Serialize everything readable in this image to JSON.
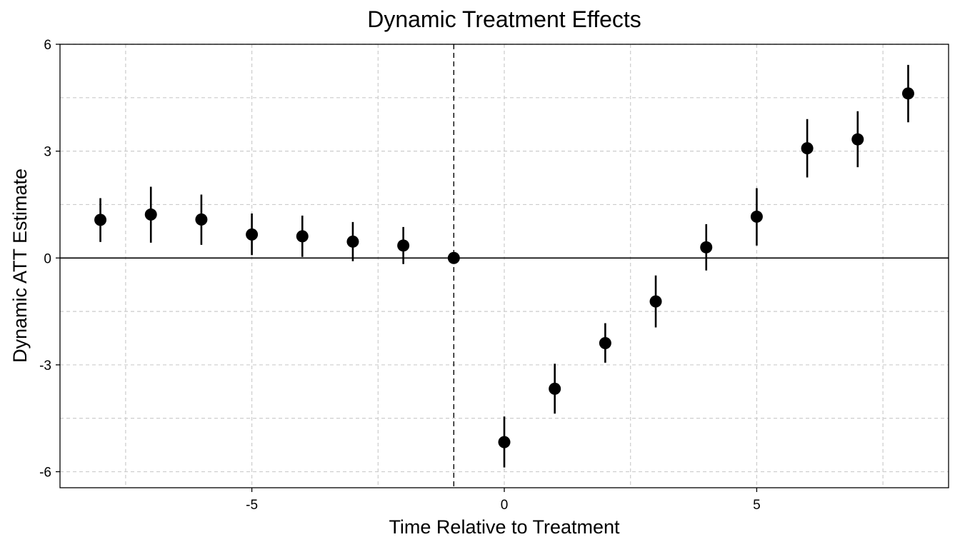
{
  "chart_data": {
    "type": "scatter",
    "title": "Dynamic Treatment Effects",
    "xlabel": "Time Relative to Treatment",
    "ylabel": "Dynamic ATT Estimate",
    "xlim": [
      -8.8,
      8.8
    ],
    "ylim": [
      -6.45,
      6
    ],
    "xticks": [
      -5,
      0,
      5
    ],
    "xtick_labels": [
      "-5",
      "0",
      "5"
    ],
    "xminor": [
      -7.5,
      -2.5,
      2.5,
      7.5
    ],
    "yticks": [
      -6,
      -3,
      0,
      3,
      6
    ],
    "ytick_labels": [
      "-6",
      "-3",
      "0",
      "3",
      "6"
    ],
    "yminor": [
      -4.5,
      -1.5,
      1.5,
      4.5
    ],
    "grid": true,
    "reference_lines": {
      "horizontal_at_y": 0,
      "vertical_dashed_at_x": -1
    },
    "points": [
      {
        "x": -8,
        "y": 1.07,
        "lower": 0.45,
        "upper": 1.68
      },
      {
        "x": -7,
        "y": 1.22,
        "lower": 0.43,
        "upper": 2.0
      },
      {
        "x": -6,
        "y": 1.08,
        "lower": 0.37,
        "upper": 1.78
      },
      {
        "x": -5,
        "y": 0.66,
        "lower": 0.08,
        "upper": 1.25
      },
      {
        "x": -4,
        "y": 0.61,
        "lower": 0.03,
        "upper": 1.19
      },
      {
        "x": -3,
        "y": 0.46,
        "lower": -0.09,
        "upper": 1.01
      },
      {
        "x": -2,
        "y": 0.35,
        "lower": -0.17,
        "upper": 0.87
      },
      {
        "x": -1,
        "y": 0.0,
        "lower": 0.0,
        "upper": 0.0
      },
      {
        "x": 0,
        "y": -5.17,
        "lower": -5.88,
        "upper": -4.45
      },
      {
        "x": 1,
        "y": -3.67,
        "lower": -4.37,
        "upper": -2.97
      },
      {
        "x": 2,
        "y": -2.39,
        "lower": -2.94,
        "upper": -1.83
      },
      {
        "x": 3,
        "y": -1.22,
        "lower": -1.95,
        "upper": -0.49
      },
      {
        "x": 4,
        "y": 0.3,
        "lower": -0.35,
        "upper": 0.95
      },
      {
        "x": 5,
        "y": 1.16,
        "lower": 0.35,
        "upper": 1.96
      },
      {
        "x": 6,
        "y": 3.08,
        "lower": 2.26,
        "upper": 3.9
      },
      {
        "x": 7,
        "y": 3.33,
        "lower": 2.55,
        "upper": 4.12
      },
      {
        "x": 8,
        "y": 4.62,
        "lower": 3.81,
        "upper": 5.42
      }
    ]
  }
}
